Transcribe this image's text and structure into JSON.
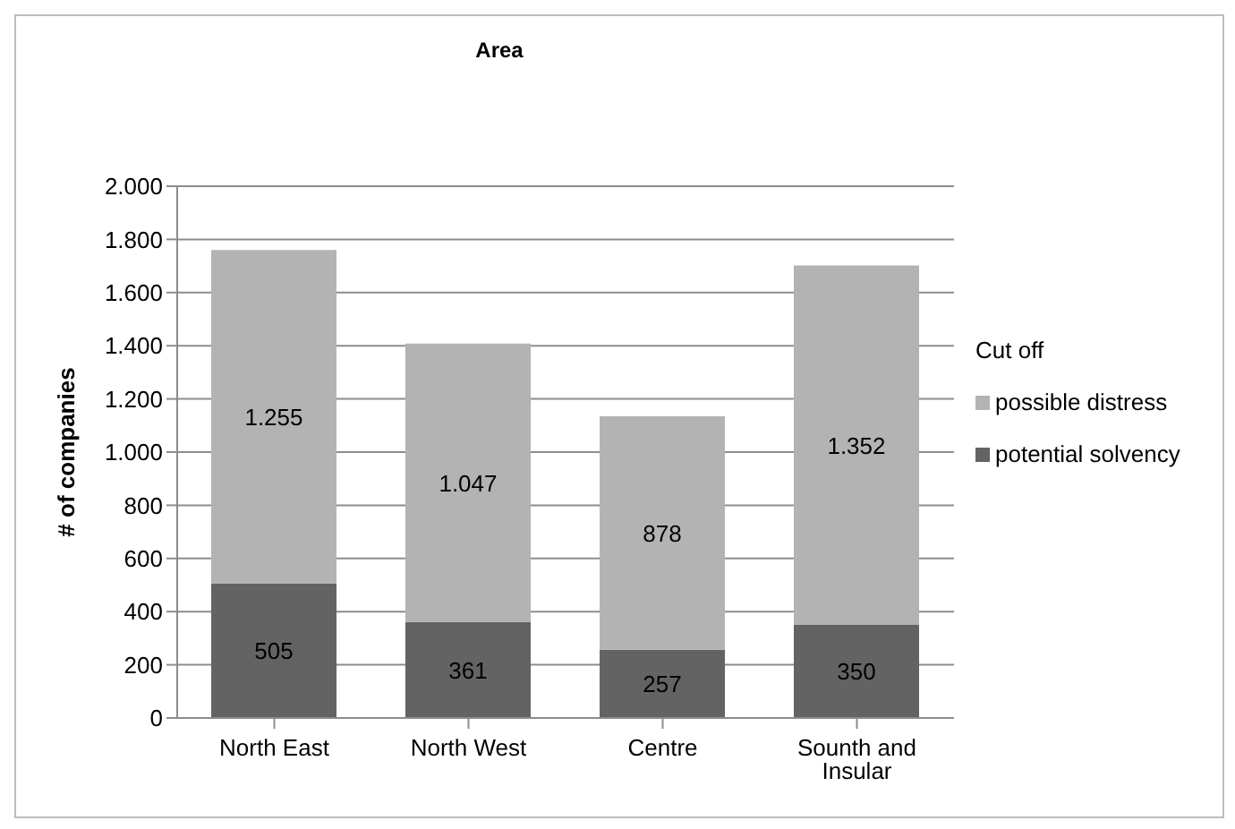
{
  "chart_data": {
    "type": "bar",
    "title": "Area",
    "ylabel": "# of companies",
    "legend_title": "Cut off",
    "stacked": true,
    "categories": [
      "North East",
      "North West",
      "Centre",
      "Sounth and Insular"
    ],
    "series": [
      {
        "name": "potential solvency",
        "color": "#636363",
        "values": [
          505,
          361,
          257,
          350
        ],
        "value_labels": [
          "505",
          "361",
          "257",
          "350"
        ]
      },
      {
        "name": "possible distress",
        "color": "#b3b3b3",
        "values": [
          1255,
          1047,
          878,
          1352
        ],
        "value_labels": [
          "1.255",
          "1.047",
          "878",
          "1.352"
        ]
      }
    ],
    "ylim": [
      0,
      2000
    ],
    "yticks": [
      {
        "value": 0,
        "label": "0"
      },
      {
        "value": 200,
        "label": "200"
      },
      {
        "value": 400,
        "label": "400"
      },
      {
        "value": 600,
        "label": "600"
      },
      {
        "value": 800,
        "label": "800"
      },
      {
        "value": 1000,
        "label": "1.000"
      },
      {
        "value": 1200,
        "label": "1.200"
      },
      {
        "value": 1400,
        "label": "1.400"
      },
      {
        "value": 1600,
        "label": "1.600"
      },
      {
        "value": 1800,
        "label": "1.800"
      },
      {
        "value": 2000,
        "label": "2.000"
      }
    ],
    "grid": "y",
    "legend": "right"
  }
}
